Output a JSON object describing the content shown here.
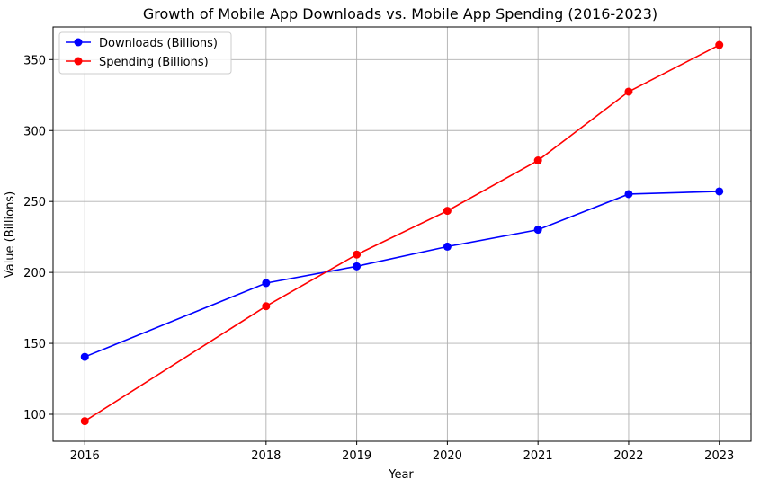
{
  "chart_data": {
    "type": "line",
    "title": "Growth of Mobile App Downloads vs. Mobile App Spending (2016-2023)",
    "xlabel": "Year",
    "ylabel": "Value (Billions)",
    "x": [
      2016,
      2018,
      2019,
      2020,
      2021,
      2022,
      2023
    ],
    "x_tick_labels": [
      "2016",
      "2018",
      "2019",
      "2020",
      "2021",
      "2022",
      "2023"
    ],
    "y_ticks": [
      100,
      150,
      200,
      250,
      300,
      350
    ],
    "y_tick_labels": [
      "100",
      "150",
      "200",
      "250",
      "300",
      "350"
    ],
    "xlim": [
      2015.65,
      2023.35
    ],
    "ylim": [
      81,
      373
    ],
    "grid": true,
    "legend_position": "top-left",
    "series": [
      {
        "name": "Downloads (Billions)",
        "color": "#0000ff",
        "marker": "circle",
        "values": [
          140.5,
          192.5,
          204.3,
          218.2,
          230.1,
          255.2,
          257.1
        ]
      },
      {
        "name": "Spending (Billions)",
        "color": "#ff0000",
        "marker": "circle",
        "values": [
          95.2,
          176.2,
          212.6,
          243.4,
          278.9,
          327.4,
          360.3
        ]
      }
    ]
  }
}
